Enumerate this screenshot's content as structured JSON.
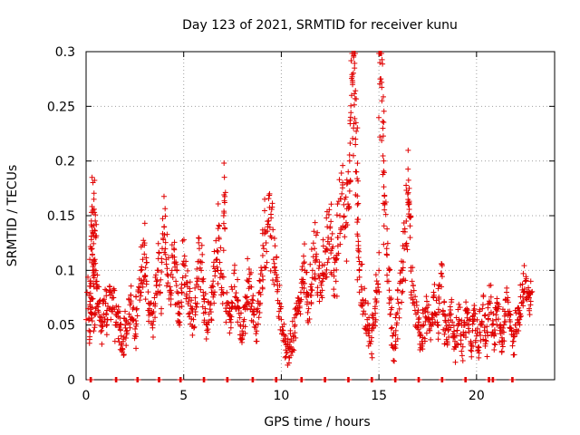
{
  "chart_data": {
    "type": "scatter",
    "title": "Day 123 of 2021, SRMTID for receiver kunu",
    "xlabel": "GPS time / hours",
    "ylabel": "SRMTID / TECUs",
    "xlim": [
      0,
      24
    ],
    "ylim": [
      0,
      0.3
    ],
    "xticks": [
      0,
      5,
      10,
      15,
      20
    ],
    "yticks": [
      0,
      0.05,
      0.1,
      0.15,
      0.2,
      0.25,
      0.3
    ],
    "grid": true,
    "marker": "+",
    "color": "#e00000",
    "series": [
      {
        "name": "SRMTID",
        "points": [
          [
            0.0,
            0.055
          ],
          [
            0.05,
            0.08
          ],
          [
            0.1,
            0.065
          ],
          [
            0.15,
            0.045
          ],
          [
            0.2,
            0.09
          ],
          [
            0.25,
            0.075
          ],
          [
            0.3,
            0.06
          ],
          [
            0.35,
            0.1
          ],
          [
            0.4,
            0.085
          ],
          [
            0.45,
            0.05
          ],
          [
            0.25,
            0.12
          ],
          [
            0.3,
            0.14
          ],
          [
            0.35,
            0.155
          ],
          [
            0.4,
            0.165
          ],
          [
            0.45,
            0.11
          ],
          [
            0.5,
            0.13
          ],
          [
            0.55,
            0.09
          ],
          [
            0.6,
            0.07
          ],
          [
            0.7,
            0.058
          ],
          [
            0.8,
            0.045
          ],
          [
            0.9,
            0.06
          ],
          [
            1.0,
            0.07
          ],
          [
            1.1,
            0.055
          ],
          [
            1.2,
            0.08
          ],
          [
            1.3,
            0.065
          ],
          [
            1.4,
            0.075
          ],
          [
            1.5,
            0.05
          ],
          [
            1.6,
            0.062
          ],
          [
            1.7,
            0.048
          ],
          [
            1.8,
            0.04
          ],
          [
            1.9,
            0.035
          ],
          [
            2.0,
            0.05
          ],
          [
            2.1,
            0.045
          ],
          [
            2.2,
            0.06
          ],
          [
            2.3,
            0.072
          ],
          [
            2.4,
            0.055
          ],
          [
            2.5,
            0.04
          ],
          [
            2.6,
            0.065
          ],
          [
            2.7,
            0.085
          ],
          [
            2.8,
            0.1
          ],
          [
            2.9,
            0.11
          ],
          [
            3.0,
            0.125
          ],
          [
            3.1,
            0.09
          ],
          [
            3.2,
            0.07
          ],
          [
            3.3,
            0.06
          ],
          [
            3.4,
            0.05
          ],
          [
            3.5,
            0.075
          ],
          [
            3.6,
            0.09
          ],
          [
            3.7,
            0.1
          ],
          [
            3.8,
            0.08
          ],
          [
            3.9,
            0.12
          ],
          [
            4.0,
            0.14
          ],
          [
            4.1,
            0.11
          ],
          [
            4.2,
            0.095
          ],
          [
            4.3,
            0.085
          ],
          [
            4.4,
            0.1
          ],
          [
            4.5,
            0.12
          ],
          [
            4.6,
            0.09
          ],
          [
            4.7,
            0.07
          ],
          [
            4.8,
            0.06
          ],
          [
            4.9,
            0.08
          ],
          [
            5.0,
            0.105
          ],
          [
            5.1,
            0.095
          ],
          [
            5.2,
            0.085
          ],
          [
            5.3,
            0.075
          ],
          [
            5.4,
            0.065
          ],
          [
            5.5,
            0.055
          ],
          [
            5.6,
            0.07
          ],
          [
            5.7,
            0.09
          ],
          [
            5.8,
            0.12
          ],
          [
            5.9,
            0.1
          ],
          [
            6.0,
            0.08
          ],
          [
            6.1,
            0.065
          ],
          [
            6.2,
            0.05
          ],
          [
            6.3,
            0.06
          ],
          [
            6.4,
            0.07
          ],
          [
            6.5,
            0.085
          ],
          [
            6.6,
            0.095
          ],
          [
            6.7,
            0.11
          ],
          [
            6.8,
            0.13
          ],
          [
            6.9,
            0.1
          ],
          [
            7.0,
            0.08
          ],
          [
            7.05,
            0.15
          ],
          [
            7.1,
            0.162
          ],
          [
            7.2,
            0.07
          ],
          [
            7.3,
            0.06
          ],
          [
            7.4,
            0.055
          ],
          [
            7.5,
            0.07
          ],
          [
            7.6,
            0.085
          ],
          [
            7.7,
            0.075
          ],
          [
            7.8,
            0.065
          ],
          [
            7.9,
            0.05
          ],
          [
            8.0,
            0.04
          ],
          [
            8.1,
            0.055
          ],
          [
            8.2,
            0.075
          ],
          [
            8.3,
            0.09
          ],
          [
            8.4,
            0.085
          ],
          [
            8.5,
            0.07
          ],
          [
            8.6,
            0.06
          ],
          [
            8.7,
            0.05
          ],
          [
            8.8,
            0.065
          ],
          [
            8.9,
            0.08
          ],
          [
            9.0,
            0.1
          ],
          [
            9.1,
            0.12
          ],
          [
            9.2,
            0.135
          ],
          [
            9.3,
            0.14
          ],
          [
            9.4,
            0.17
          ],
          [
            9.5,
            0.13
          ],
          [
            9.6,
            0.11
          ],
          [
            9.7,
            0.1
          ],
          [
            9.8,
            0.09
          ],
          [
            9.9,
            0.07
          ],
          [
            10.0,
            0.055
          ],
          [
            10.1,
            0.045
          ],
          [
            10.2,
            0.035
          ],
          [
            10.3,
            0.025
          ],
          [
            10.4,
            0.02
          ],
          [
            10.5,
            0.03
          ],
          [
            10.6,
            0.04
          ],
          [
            10.7,
            0.05
          ],
          [
            10.8,
            0.06
          ],
          [
            10.9,
            0.07
          ],
          [
            11.0,
            0.08
          ],
          [
            11.1,
            0.09
          ],
          [
            11.2,
            0.1
          ],
          [
            11.3,
            0.08
          ],
          [
            11.4,
            0.065
          ],
          [
            11.5,
            0.085
          ],
          [
            11.6,
            0.1
          ],
          [
            11.7,
            0.12
          ],
          [
            11.8,
            0.11
          ],
          [
            11.9,
            0.095
          ],
          [
            12.0,
            0.08
          ],
          [
            12.1,
            0.09
          ],
          [
            12.2,
            0.105
          ],
          [
            12.3,
            0.12
          ],
          [
            12.4,
            0.13
          ],
          [
            12.5,
            0.14
          ],
          [
            12.6,
            0.12
          ],
          [
            12.7,
            0.1
          ],
          [
            12.8,
            0.09
          ],
          [
            12.9,
            0.13
          ],
          [
            13.0,
            0.15
          ],
          [
            13.1,
            0.17
          ],
          [
            13.2,
            0.16
          ],
          [
            13.3,
            0.14
          ],
          [
            13.4,
            0.18
          ],
          [
            13.5,
            0.2
          ],
          [
            13.55,
            0.24
          ],
          [
            13.6,
            0.26
          ],
          [
            13.65,
            0.27
          ],
          [
            13.7,
            0.295
          ],
          [
            13.75,
            0.285
          ],
          [
            13.8,
            0.22
          ],
          [
            13.85,
            0.19
          ],
          [
            13.9,
            0.16
          ],
          [
            13.95,
            0.12
          ],
          [
            14.0,
            0.1
          ],
          [
            14.1,
            0.085
          ],
          [
            14.2,
            0.07
          ],
          [
            14.3,
            0.06
          ],
          [
            14.4,
            0.055
          ],
          [
            14.5,
            0.045
          ],
          [
            14.6,
            0.035
          ],
          [
            14.7,
            0.05
          ],
          [
            14.8,
            0.065
          ],
          [
            14.9,
            0.08
          ],
          [
            15.0,
            0.1
          ],
          [
            15.05,
            0.29
          ],
          [
            15.1,
            0.275
          ],
          [
            15.15,
            0.255
          ],
          [
            15.2,
            0.23
          ],
          [
            15.25,
            0.2
          ],
          [
            15.3,
            0.16
          ],
          [
            15.4,
            0.12
          ],
          [
            15.5,
            0.09
          ],
          [
            15.6,
            0.06
          ],
          [
            15.7,
            0.04
          ],
          [
            15.8,
            0.03
          ],
          [
            15.9,
            0.05
          ],
          [
            16.0,
            0.07
          ],
          [
            16.1,
            0.09
          ],
          [
            16.2,
            0.1
          ],
          [
            16.3,
            0.12
          ],
          [
            16.4,
            0.145
          ],
          [
            16.5,
            0.16
          ],
          [
            16.55,
            0.175
          ],
          [
            16.6,
            0.13
          ],
          [
            16.7,
            0.09
          ],
          [
            16.8,
            0.07
          ],
          [
            16.9,
            0.06
          ],
          [
            17.0,
            0.05
          ],
          [
            17.1,
            0.04
          ],
          [
            17.2,
            0.035
          ],
          [
            17.3,
            0.05
          ],
          [
            17.4,
            0.065
          ],
          [
            17.5,
            0.055
          ],
          [
            17.6,
            0.045
          ],
          [
            17.7,
            0.06
          ],
          [
            17.8,
            0.075
          ],
          [
            17.9,
            0.06
          ],
          [
            18.0,
            0.05
          ],
          [
            18.1,
            0.07
          ],
          [
            18.2,
            0.085
          ],
          [
            18.3,
            0.06
          ],
          [
            18.4,
            0.045
          ],
          [
            18.5,
            0.035
          ],
          [
            18.6,
            0.05
          ],
          [
            18.7,
            0.06
          ],
          [
            18.8,
            0.04
          ],
          [
            18.9,
            0.03
          ],
          [
            19.0,
            0.045
          ],
          [
            19.1,
            0.055
          ],
          [
            19.2,
            0.04
          ],
          [
            19.3,
            0.03
          ],
          [
            19.4,
            0.05
          ],
          [
            19.5,
            0.065
          ],
          [
            19.6,
            0.05
          ],
          [
            19.7,
            0.035
          ],
          [
            19.8,
            0.045
          ],
          [
            19.9,
            0.055
          ],
          [
            20.0,
            0.04
          ],
          [
            20.1,
            0.03
          ],
          [
            20.2,
            0.05
          ],
          [
            20.3,
            0.065
          ],
          [
            20.4,
            0.045
          ],
          [
            20.5,
            0.035
          ],
          [
            20.6,
            0.055
          ],
          [
            20.7,
            0.07
          ],
          [
            20.8,
            0.05
          ],
          [
            20.9,
            0.04
          ],
          [
            21.0,
            0.055
          ],
          [
            21.1,
            0.065
          ],
          [
            21.2,
            0.045
          ],
          [
            21.3,
            0.035
          ],
          [
            21.4,
            0.05
          ],
          [
            21.5,
            0.06
          ],
          [
            21.6,
            0.075
          ],
          [
            21.7,
            0.06
          ],
          [
            21.8,
            0.045
          ],
          [
            21.9,
            0.035
          ],
          [
            22.0,
            0.05
          ],
          [
            22.1,
            0.065
          ],
          [
            22.2,
            0.055
          ],
          [
            22.3,
            0.07
          ],
          [
            22.4,
            0.08
          ],
          [
            22.5,
            0.09
          ],
          [
            22.6,
            0.075
          ],
          [
            22.7,
            0.065
          ],
          [
            22.8,
            0.08
          ]
        ]
      }
    ],
    "zero_points": [
      0.2,
      1.5,
      2.6,
      3.7,
      4.8,
      6.0,
      7.2,
      8.5,
      9.7,
      11.0,
      12.2,
      13.4,
      14.6,
      15.8,
      17.0,
      18.2,
      19.4,
      20.6,
      20.8,
      21.8
    ]
  }
}
